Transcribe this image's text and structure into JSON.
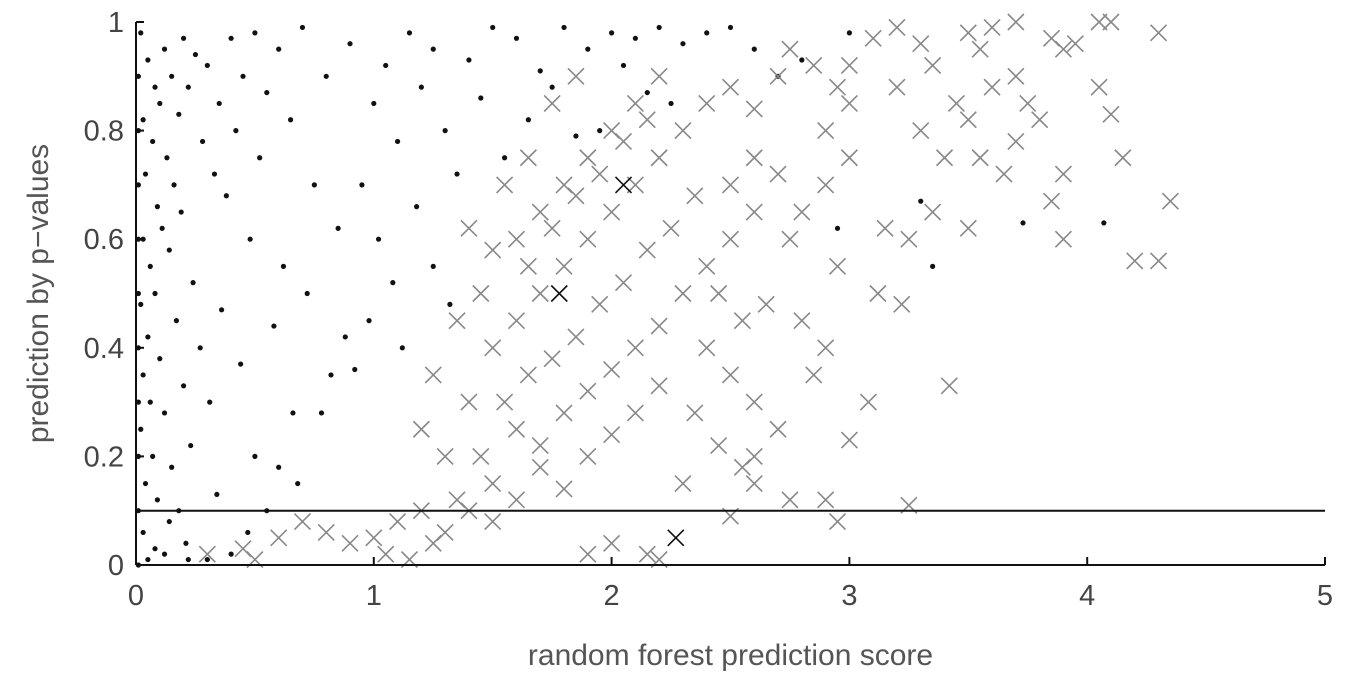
{
  "chart_data": {
    "type": "scatter",
    "title": "",
    "xlabel": "random forest prediction score",
    "ylabel": "prediction by p−values",
    "xlim": [
      0,
      5
    ],
    "ylim": [
      0,
      1
    ],
    "xticks": [
      0,
      1,
      2,
      3,
      4,
      5
    ],
    "yticks": [
      0,
      0.2,
      0.4,
      0.6,
      0.8,
      1
    ],
    "xtick_labels": [
      "0",
      "1",
      "2",
      "3",
      "4",
      "5"
    ],
    "ytick_labels": [
      "0",
      "0.2",
      "0.4",
      "0.6",
      "0.8",
      "1"
    ],
    "grid": false,
    "reference_line": {
      "y": 0.1
    },
    "series": [
      {
        "marker": "dot",
        "color": "#111111",
        "points": [
          [
            0.02,
            0.98
          ],
          [
            0.05,
            0.93
          ],
          [
            0.08,
            0.88
          ],
          [
            0.12,
            0.95
          ],
          [
            0.03,
            0.82
          ],
          [
            0.07,
            0.78
          ],
          [
            0.1,
            0.85
          ],
          [
            0.15,
            0.9
          ],
          [
            0.2,
            0.97
          ],
          [
            0.04,
            0.72
          ],
          [
            0.09,
            0.66
          ],
          [
            0.13,
            0.75
          ],
          [
            0.18,
            0.83
          ],
          [
            0.22,
            0.88
          ],
          [
            0.25,
            0.94
          ],
          [
            0.03,
            0.6
          ],
          [
            0.06,
            0.55
          ],
          [
            0.11,
            0.62
          ],
          [
            0.16,
            0.7
          ],
          [
            0.3,
            0.92
          ],
          [
            0.35,
            0.85
          ],
          [
            0.4,
            0.97
          ],
          [
            0.02,
            0.48
          ],
          [
            0.05,
            0.42
          ],
          [
            0.08,
            0.5
          ],
          [
            0.14,
            0.58
          ],
          [
            0.19,
            0.65
          ],
          [
            0.28,
            0.78
          ],
          [
            0.33,
            0.72
          ],
          [
            0.45,
            0.9
          ],
          [
            0.5,
            0.98
          ],
          [
            0.03,
            0.35
          ],
          [
            0.06,
            0.3
          ],
          [
            0.1,
            0.38
          ],
          [
            0.17,
            0.45
          ],
          [
            0.24,
            0.52
          ],
          [
            0.38,
            0.68
          ],
          [
            0.42,
            0.8
          ],
          [
            0.55,
            0.87
          ],
          [
            0.6,
            0.95
          ],
          [
            0.02,
            0.25
          ],
          [
            0.07,
            0.2
          ],
          [
            0.12,
            0.28
          ],
          [
            0.2,
            0.33
          ],
          [
            0.27,
            0.4
          ],
          [
            0.36,
            0.47
          ],
          [
            0.48,
            0.6
          ],
          [
            0.52,
            0.75
          ],
          [
            0.65,
            0.82
          ],
          [
            0.7,
            0.99
          ],
          [
            0.04,
            0.15
          ],
          [
            0.09,
            0.12
          ],
          [
            0.15,
            0.18
          ],
          [
            0.23,
            0.22
          ],
          [
            0.31,
            0.3
          ],
          [
            0.44,
            0.37
          ],
          [
            0.58,
            0.44
          ],
          [
            0.62,
            0.55
          ],
          [
            0.75,
            0.7
          ],
          [
            0.8,
            0.9
          ],
          [
            0.03,
            0.06
          ],
          [
            0.08,
            0.03
          ],
          [
            0.14,
            0.08
          ],
          [
            0.21,
            0.04
          ],
          [
            0.34,
            0.13
          ],
          [
            0.5,
            0.2
          ],
          [
            0.66,
            0.28
          ],
          [
            0.72,
            0.5
          ],
          [
            0.85,
            0.62
          ],
          [
            0.9,
            0.96
          ],
          [
            1.0,
            0.85
          ],
          [
            1.05,
            0.92
          ],
          [
            1.1,
            0.78
          ],
          [
            1.15,
            0.98
          ],
          [
            0.95,
            0.7
          ],
          [
            1.2,
            0.88
          ],
          [
            1.25,
            0.95
          ],
          [
            1.3,
            0.8
          ],
          [
            1.4,
            0.93
          ],
          [
            1.5,
            0.99
          ],
          [
            1.02,
            0.6
          ],
          [
            1.08,
            0.52
          ],
          [
            0.98,
            0.45
          ],
          [
            1.12,
            0.4
          ],
          [
            0.92,
            0.36
          ],
          [
            1.18,
            0.66
          ],
          [
            1.35,
            0.72
          ],
          [
            1.45,
            0.86
          ],
          [
            1.6,
            0.97
          ],
          [
            1.7,
            0.91
          ],
          [
            1.8,
            0.99
          ],
          [
            1.9,
            0.95
          ],
          [
            2.0,
            0.98
          ],
          [
            2.1,
            0.97
          ],
          [
            2.2,
            0.99
          ],
          [
            2.3,
            0.96
          ],
          [
            1.55,
            0.75
          ],
          [
            1.65,
            0.82
          ],
          [
            1.75,
            0.88
          ],
          [
            1.85,
            0.79
          ],
          [
            2.05,
            0.92
          ],
          [
            2.15,
            0.87
          ],
          [
            2.4,
            0.98
          ],
          [
            2.5,
            0.99
          ],
          [
            2.6,
            0.95
          ],
          [
            1.25,
            0.55
          ],
          [
            1.32,
            0.48
          ],
          [
            0.88,
            0.42
          ],
          [
            0.82,
            0.35
          ],
          [
            0.78,
            0.28
          ],
          [
            0.68,
            0.15
          ],
          [
            0.6,
            0.18
          ],
          [
            0.55,
            0.1
          ],
          [
            0.47,
            0.06
          ],
          [
            0.4,
            0.02
          ],
          [
            0.3,
            0.01
          ],
          [
            0.22,
            0.01
          ],
          [
            0.12,
            0.02
          ],
          [
            0.05,
            0.01
          ],
          [
            0.18,
            0.1
          ],
          [
            2.7,
            0.9
          ],
          [
            2.8,
            0.93
          ],
          [
            3.0,
            0.98
          ],
          [
            3.3,
            0.67
          ],
          [
            3.73,
            0.63
          ],
          [
            4.07,
            0.63
          ],
          [
            3.35,
            0.55
          ],
          [
            2.95,
            0.62
          ],
          [
            2.25,
            0.85
          ],
          [
            1.95,
            0.8
          ],
          [
            0.01,
            0.9
          ],
          [
            0.01,
            0.8
          ],
          [
            0.01,
            0.7
          ],
          [
            0.01,
            0.6
          ],
          [
            0.01,
            0.5
          ],
          [
            0.01,
            0.4
          ],
          [
            0.01,
            0.3
          ],
          [
            0.01,
            0.2
          ],
          [
            0.01,
            0.1
          ],
          [
            0.01,
            0.0
          ]
        ]
      },
      {
        "marker": "x",
        "color": "#888888",
        "points": [
          [
            1.5,
            0.4
          ],
          [
            1.6,
            0.45
          ],
          [
            1.7,
            0.5
          ],
          [
            1.8,
            0.55
          ],
          [
            1.9,
            0.6
          ],
          [
            2.0,
            0.65
          ],
          [
            2.1,
            0.7
          ],
          [
            2.2,
            0.75
          ],
          [
            1.55,
            0.3
          ],
          [
            1.65,
            0.35
          ],
          [
            1.75,
            0.38
          ],
          [
            1.85,
            0.42
          ],
          [
            1.95,
            0.48
          ],
          [
            2.05,
            0.52
          ],
          [
            2.15,
            0.58
          ],
          [
            2.25,
            0.62
          ],
          [
            2.35,
            0.68
          ],
          [
            1.45,
            0.2
          ],
          [
            1.5,
            0.15
          ],
          [
            1.6,
            0.25
          ],
          [
            1.7,
            0.22
          ],
          [
            1.8,
            0.28
          ],
          [
            1.9,
            0.32
          ],
          [
            2.0,
            0.36
          ],
          [
            2.1,
            0.4
          ],
          [
            2.2,
            0.44
          ],
          [
            2.3,
            0.5
          ],
          [
            2.4,
            0.55
          ],
          [
            1.4,
            0.1
          ],
          [
            1.5,
            0.08
          ],
          [
            1.6,
            0.12
          ],
          [
            1.7,
            0.18
          ],
          [
            1.8,
            0.14
          ],
          [
            1.9,
            0.2
          ],
          [
            2.0,
            0.24
          ],
          [
            2.1,
            0.28
          ],
          [
            2.2,
            0.33
          ],
          [
            1.6,
            0.6
          ],
          [
            1.7,
            0.65
          ],
          [
            1.8,
            0.7
          ],
          [
            1.9,
            0.75
          ],
          [
            2.0,
            0.8
          ],
          [
            2.1,
            0.85
          ],
          [
            2.2,
            0.9
          ],
          [
            1.65,
            0.55
          ],
          [
            1.75,
            0.62
          ],
          [
            1.85,
            0.68
          ],
          [
            1.95,
            0.72
          ],
          [
            2.05,
            0.78
          ],
          [
            2.15,
            0.82
          ],
          [
            2.3,
            0.8
          ],
          [
            2.4,
            0.85
          ],
          [
            2.5,
            0.88
          ],
          [
            2.6,
            0.84
          ],
          [
            2.7,
            0.9
          ],
          [
            2.5,
            0.7
          ],
          [
            2.6,
            0.75
          ],
          [
            2.7,
            0.72
          ],
          [
            2.5,
            0.6
          ],
          [
            2.6,
            0.65
          ],
          [
            2.45,
            0.5
          ],
          [
            2.55,
            0.45
          ],
          [
            2.65,
            0.48
          ],
          [
            2.4,
            0.4
          ],
          [
            2.5,
            0.35
          ],
          [
            2.6,
            0.3
          ],
          [
            2.35,
            0.28
          ],
          [
            2.45,
            0.22
          ],
          [
            2.55,
            0.18
          ],
          [
            2.3,
            0.15
          ],
          [
            1.0,
            0.05
          ],
          [
            1.1,
            0.08
          ],
          [
            1.2,
            0.1
          ],
          [
            1.3,
            0.06
          ],
          [
            1.05,
            0.02
          ],
          [
            1.15,
            0.01
          ],
          [
            1.25,
            0.04
          ],
          [
            1.35,
            0.12
          ],
          [
            1.3,
            0.2
          ],
          [
            1.4,
            0.3
          ],
          [
            1.2,
            0.25
          ],
          [
            1.25,
            0.35
          ],
          [
            1.35,
            0.45
          ],
          [
            1.45,
            0.5
          ],
          [
            1.5,
            0.58
          ],
          [
            1.4,
            0.62
          ],
          [
            1.55,
            0.7
          ],
          [
            1.65,
            0.75
          ],
          [
            1.75,
            0.85
          ],
          [
            1.85,
            0.9
          ],
          [
            0.45,
            0.03
          ],
          [
            0.6,
            0.05
          ],
          [
            0.7,
            0.08
          ],
          [
            0.8,
            0.06
          ],
          [
            0.9,
            0.04
          ],
          [
            0.3,
            0.02
          ],
          [
            0.5,
            0.01
          ],
          [
            2.8,
            0.45
          ],
          [
            2.9,
            0.4
          ],
          [
            2.85,
            0.35
          ],
          [
            2.95,
            0.55
          ],
          [
            2.75,
            0.6
          ],
          [
            2.8,
            0.65
          ],
          [
            2.9,
            0.7
          ],
          [
            3.0,
            0.75
          ],
          [
            2.9,
            0.8
          ],
          [
            3.0,
            0.85
          ],
          [
            2.75,
            0.12
          ],
          [
            2.9,
            0.12
          ],
          [
            2.95,
            0.08
          ],
          [
            3.25,
            0.11
          ],
          [
            2.2,
            0.01
          ],
          [
            2.15,
            0.02
          ],
          [
            2.0,
            0.04
          ],
          [
            1.9,
            0.02
          ],
          [
            2.5,
            0.09
          ],
          [
            2.6,
            0.2
          ],
          [
            2.7,
            0.25
          ],
          [
            2.6,
            0.15
          ],
          [
            3.0,
            0.23
          ],
          [
            3.08,
            0.3
          ],
          [
            3.42,
            0.33
          ],
          [
            3.22,
            0.48
          ],
          [
            3.12,
            0.5
          ],
          [
            3.25,
            0.6
          ],
          [
            3.15,
            0.62
          ],
          [
            3.35,
            0.65
          ],
          [
            3.5,
            0.62
          ],
          [
            3.4,
            0.75
          ],
          [
            3.55,
            0.75
          ],
          [
            3.65,
            0.72
          ],
          [
            3.3,
            0.8
          ],
          [
            3.5,
            0.82
          ],
          [
            3.7,
            0.78
          ],
          [
            3.8,
            0.82
          ],
          [
            3.9,
            0.72
          ],
          [
            3.85,
            0.67
          ],
          [
            3.9,
            0.6
          ],
          [
            4.05,
            0.88
          ],
          [
            4.1,
            0.83
          ],
          [
            4.15,
            0.75
          ],
          [
            4.35,
            0.67
          ],
          [
            4.2,
            0.56
          ],
          [
            4.3,
            0.56
          ],
          [
            3.6,
            0.88
          ],
          [
            3.7,
            0.9
          ],
          [
            3.45,
            0.85
          ],
          [
            3.1,
            0.97
          ],
          [
            3.2,
            0.99
          ],
          [
            3.3,
            0.96
          ],
          [
            3.5,
            0.98
          ],
          [
            3.6,
            0.99
          ],
          [
            3.7,
            1.0
          ],
          [
            3.85,
            0.97
          ],
          [
            3.95,
            0.96
          ],
          [
            4.05,
            1.0
          ],
          [
            4.1,
            1.0
          ],
          [
            3.9,
            0.95
          ],
          [
            4.3,
            0.98
          ],
          [
            3.75,
            0.85
          ],
          [
            3.55,
            0.95
          ],
          [
            3.35,
            0.92
          ],
          [
            3.2,
            0.88
          ],
          [
            3.0,
            0.92
          ],
          [
            2.95,
            0.88
          ],
          [
            2.85,
            0.92
          ],
          [
            2.75,
            0.95
          ]
        ]
      },
      {
        "marker": "x",
        "color": "#111111",
        "points": [
          [
            2.27,
            0.05
          ],
          [
            1.78,
            0.5
          ],
          [
            2.05,
            0.7
          ]
        ]
      }
    ]
  }
}
